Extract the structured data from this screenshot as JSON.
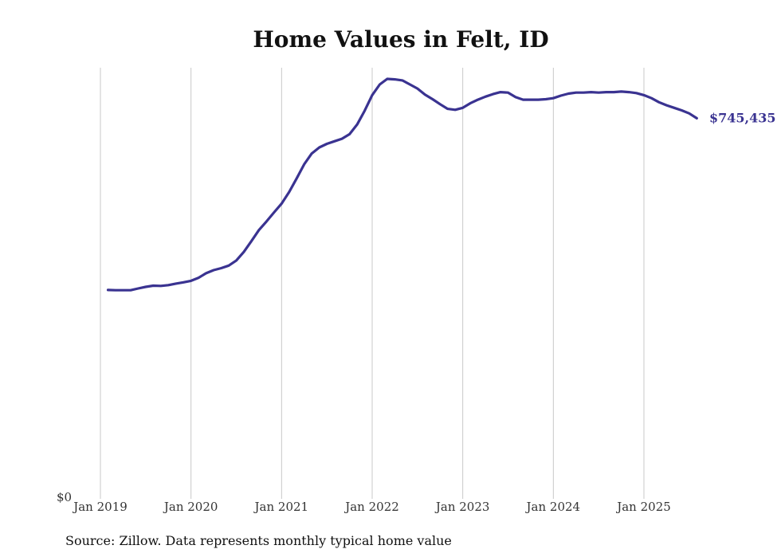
{
  "chart_data": {
    "type": "line",
    "title": "Home Values in Felt, ID",
    "xlabel": "",
    "ylabel": "",
    "y_tick_labels": [
      "$0"
    ],
    "x_tick_labels": [
      "Jan 2019",
      "Jan 2020",
      "Jan 2021",
      "Jan 2022",
      "Jan 2023",
      "Jan 2024",
      "Jan 2025"
    ],
    "ylim": [
      0,
      845000
    ],
    "xlim": [
      "2019-01",
      "2025-08"
    ],
    "grid": "vertical",
    "legend": "none",
    "line_color": "#3a3391",
    "series": [
      {
        "x": [
          "2019-02",
          "2019-03",
          "2019-04",
          "2019-05",
          "2019-06",
          "2019-07",
          "2019-08",
          "2019-09",
          "2019-10",
          "2019-11",
          "2019-12",
          "2020-01",
          "2020-02",
          "2020-03",
          "2020-04",
          "2020-05",
          "2020-06",
          "2020-07",
          "2020-08",
          "2020-09",
          "2020-10",
          "2020-11",
          "2020-12",
          "2021-01",
          "2021-02",
          "2021-03",
          "2021-04",
          "2021-05",
          "2021-06",
          "2021-07",
          "2021-08",
          "2021-09",
          "2021-10",
          "2021-11",
          "2021-12",
          "2022-01",
          "2022-02",
          "2022-03",
          "2022-04",
          "2022-05",
          "2022-06",
          "2022-07",
          "2022-08",
          "2022-09",
          "2022-10",
          "2022-11",
          "2022-12",
          "2023-01",
          "2023-02",
          "2023-03",
          "2023-04",
          "2023-05",
          "2023-06",
          "2023-07",
          "2023-08",
          "2023-09",
          "2023-10",
          "2023-11",
          "2023-12",
          "2024-01",
          "2024-02",
          "2024-03",
          "2024-04",
          "2024-05",
          "2024-06",
          "2024-07",
          "2024-08",
          "2024-09",
          "2024-10",
          "2024-11",
          "2024-12",
          "2025-01",
          "2025-02",
          "2025-03",
          "2025-04",
          "2025-05",
          "2025-06",
          "2025-07",
          "2025-08"
        ],
        "values": [
          407000,
          406500,
          406500,
          406500,
          410000,
          413000,
          415500,
          415000,
          416500,
          419500,
          422000,
          425000,
          431000,
          440000,
          446000,
          450000,
          455000,
          465000,
          482000,
          503000,
          525000,
          542000,
          560000,
          577000,
          600000,
          627000,
          655000,
          676000,
          688000,
          695000,
          700000,
          705000,
          714000,
          733000,
          760000,
          791000,
          812000,
          823000,
          822000,
          820000,
          812000,
          804000,
          792000,
          783000,
          773000,
          764000,
          762000,
          766000,
          775000,
          782000,
          788000,
          793000,
          797000,
          796000,
          787000,
          782000,
          782000,
          782000,
          783000,
          785000,
          790000,
          794000,
          796000,
          796000,
          797000,
          796000,
          797000,
          797000,
          798000,
          797000,
          795000,
          791000,
          785000,
          777000,
          771000,
          766000,
          761000,
          755000,
          745435
        ]
      }
    ],
    "end_label": "$745,435"
  },
  "source_note": "Source: Zillow. Data represents monthly typical home value"
}
